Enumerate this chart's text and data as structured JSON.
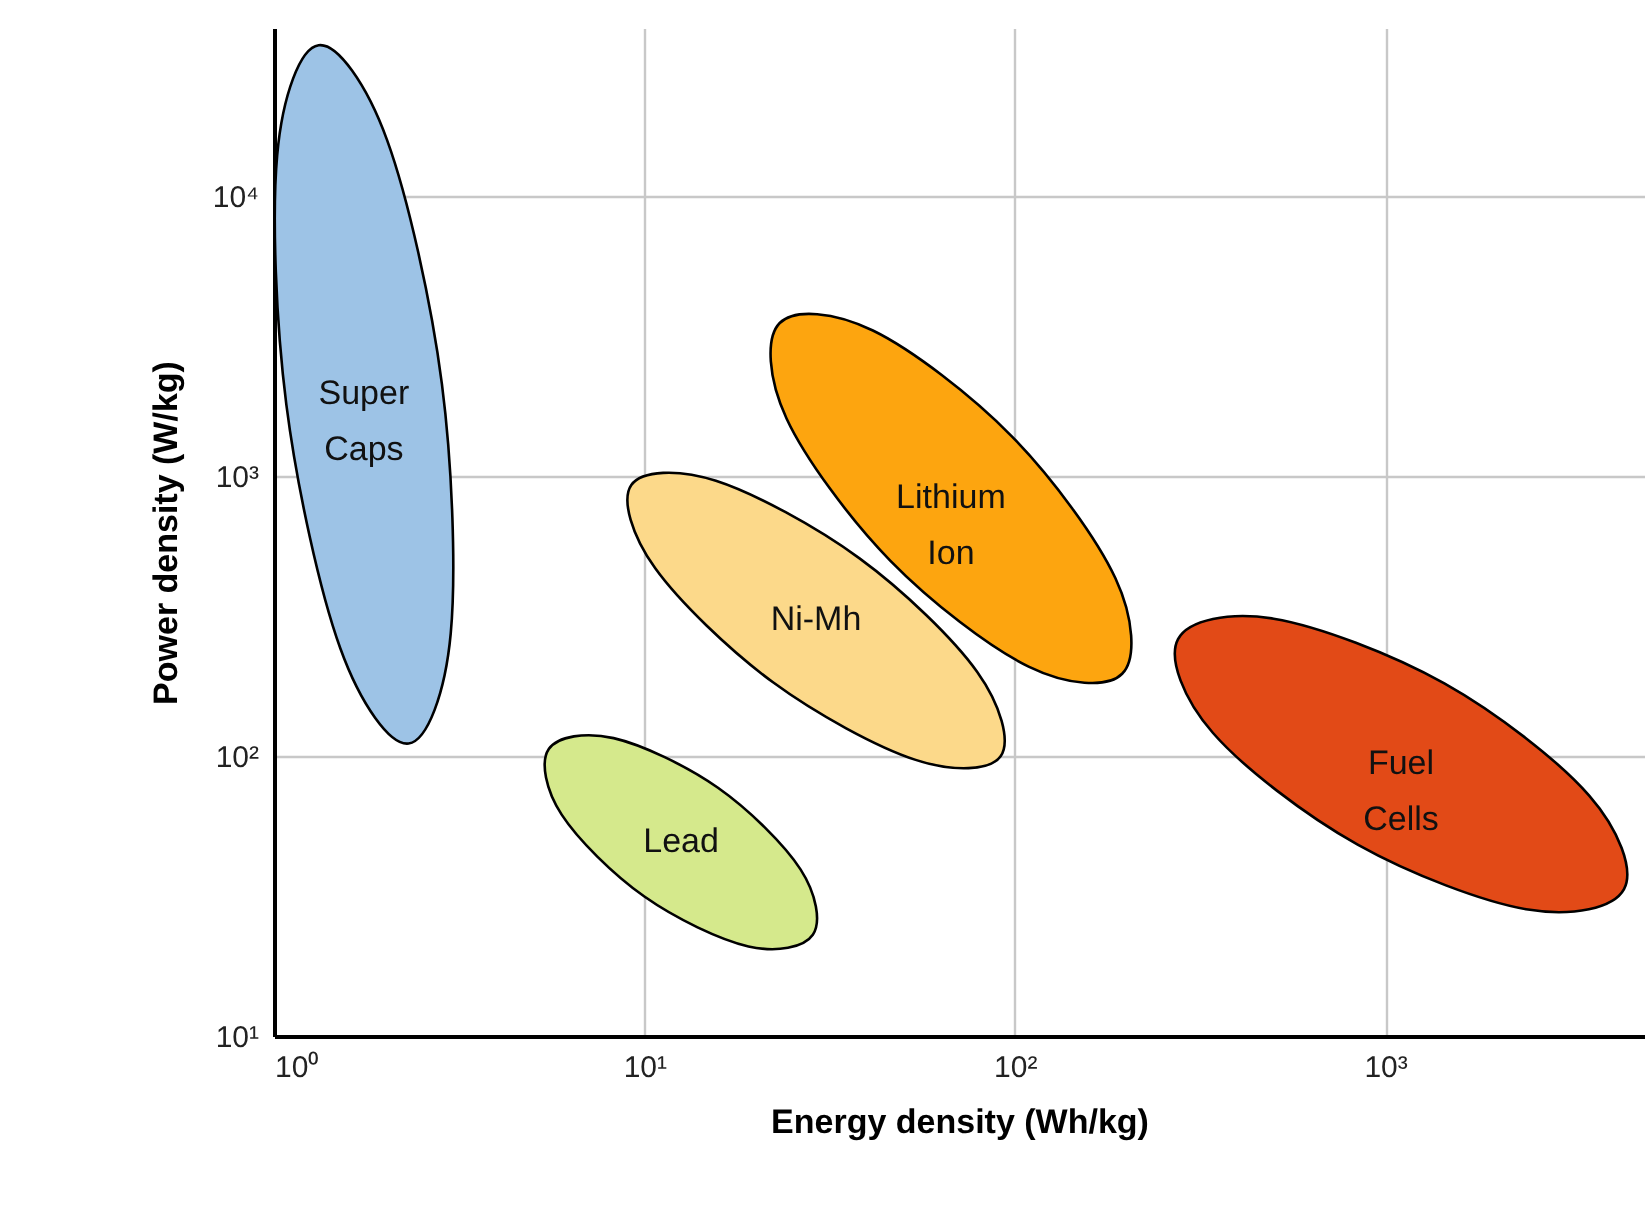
{
  "chart_data": {
    "type": "area",
    "xlabel": "Energy density (Wh/kg)",
    "ylabel": "Power density (W/kg)",
    "log": "xy",
    "grid": true,
    "xlim": [
      1,
      5000
    ],
    "ylim": [
      10,
      40000
    ],
    "xticks": [
      {
        "value": 1,
        "label": "10⁰"
      },
      {
        "value": 10,
        "label": "10¹"
      },
      {
        "value": 100,
        "label": "10²"
      },
      {
        "value": 1000,
        "label": "10³"
      }
    ],
    "yticks": [
      {
        "value": 10,
        "label": "10¹"
      },
      {
        "value": 100,
        "label": "10²"
      },
      {
        "value": 1000,
        "label": "10³"
      },
      {
        "value": 10000,
        "label": "10⁴"
      }
    ],
    "series": [
      {
        "name": "Super Caps",
        "color": "#9dc3e6",
        "x": [
          1.32,
          2.02,
          2.84,
          3.0,
          2.31,
          1.51,
          1.08,
          1.02
        ],
        "values": [
          34700,
          15900,
          2140,
          274,
          111,
          243,
          1800,
          14060
        ]
      },
      {
        "name": "Lithium Ion",
        "color": "#fda50f",
        "x": [
          195,
          109,
          46.1,
          24.2,
          23.2,
          41.4,
          98.2,
          187
        ],
        "values": [
          197,
          209,
          500,
          1610,
          3530,
          3320,
          1390,
          432
        ]
      },
      {
        "name": "Ni-Mh",
        "color": "#fcd98a",
        "x": [
          91.6,
          54.0,
          22.2,
          10.7,
          9.22,
          15.6,
          38.1,
          79.2
        ],
        "values": [
          100,
          97,
          184,
          469,
          931,
          964,
          509,
          200
        ]
      },
      {
        "name": "Lead",
        "color": "#d5e98c",
        "x": [
          28.5,
          19.1,
          10.0,
          5.98,
          5.52,
          8.26,
          15.8,
          26.4
        ],
        "values": [
          23.0,
          20.9,
          31.5,
          61.8,
          106,
          116,
          77.1,
          39.4
        ]
      },
      {
        "name": "Fuel Cells",
        "color": "#e24a17",
        "x": [
          4416,
          2432,
          843,
          343,
          276,
          500,
          1445,
          3556
        ],
        "values": [
          33.5,
          28.3,
          48.3,
          121,
          262,
          310,
          182,
          72.3
        ]
      }
    ]
  }
}
